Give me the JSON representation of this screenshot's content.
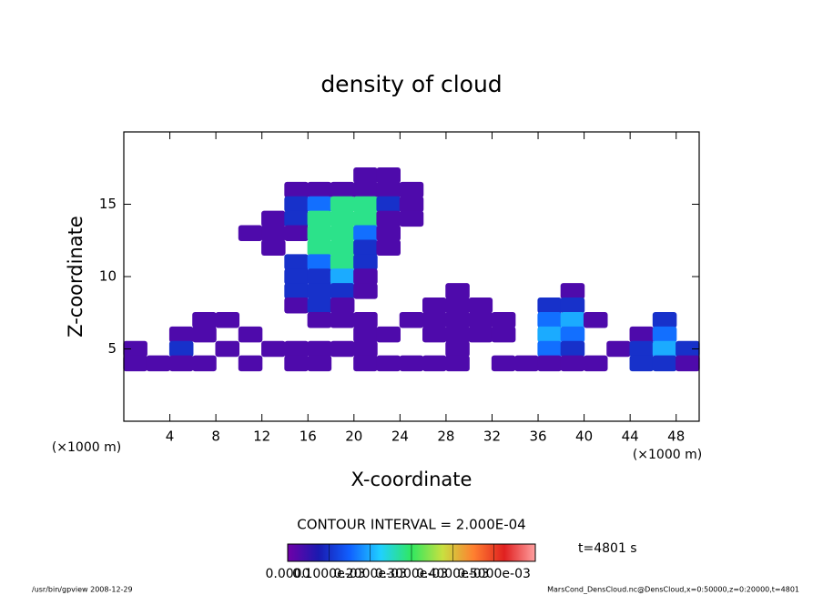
{
  "chart_data": {
    "type": "cellmap",
    "title": "density of cloud",
    "x_label": "X-coordinate",
    "y_label": "Z-coordinate",
    "x_unit": "(×1000 m)",
    "contour_interval": "CONTOUR INTERVAL = 2.000E-04",
    "time_label": "t=4801 s",
    "footer_left": "/usr/bin/gpview  2008-12-29",
    "footer_right": "MarsCond_DensCloud.nc@DensCloud,x=0:50000,z=0:20000,t=4801",
    "xlim": [
      0,
      50
    ],
    "xticks": [
      4,
      8,
      12,
      16,
      20,
      24,
      28,
      32,
      36,
      40,
      44,
      48
    ],
    "ylim": [
      0,
      20
    ],
    "yticks": [
      5,
      10,
      15
    ],
    "clim": [
      0,
      0.0006
    ],
    "cticks": [
      {
        "value": 0,
        "label": "0.0000"
      },
      {
        "value": 0.0001,
        "label": "0.1000e-03"
      },
      {
        "value": 0.0002,
        "label": "0.2000e-03"
      },
      {
        "value": 0.0003,
        "label": "0.3000e-03"
      },
      {
        "value": 0.0004,
        "label": "0.4000e-03"
      },
      {
        "value": 0.0005,
        "label": "0.5000e-03"
      }
    ],
    "colormap": [
      "#7000a8",
      "#1a1ab0",
      "#1060ff",
      "#20d0ff",
      "#30e860",
      "#c8e040",
      "#ff8030",
      "#e02020",
      "#ffa0a0"
    ],
    "x": [
      21,
      23,
      15,
      17,
      19,
      21,
      23,
      25,
      15,
      17,
      19,
      21,
      23,
      25,
      13,
      15,
      17,
      19,
      21,
      23,
      25,
      11,
      13,
      15,
      17,
      19,
      21,
      23,
      13,
      17,
      19,
      21,
      23,
      15,
      17,
      19,
      21,
      15,
      17,
      19,
      21,
      15,
      17,
      19,
      21,
      29,
      39,
      15,
      17,
      19,
      27,
      29,
      31,
      37,
      39,
      7,
      9,
      17,
      19,
      21,
      25,
      27,
      29,
      31,
      33,
      37,
      39,
      41,
      47,
      5,
      7,
      11,
      21,
      23,
      27,
      29,
      31,
      33,
      37,
      39,
      45,
      47,
      1,
      5,
      9,
      13,
      15,
      17,
      19,
      21,
      29,
      37,
      39,
      43,
      45,
      47,
      49,
      1,
      3,
      5,
      7,
      11,
      15,
      17,
      21,
      23,
      25,
      27,
      29,
      33,
      35,
      37,
      39,
      41,
      45,
      47,
      49
    ],
    "z": [
      17,
      17,
      16,
      16,
      16,
      16,
      16,
      16,
      15,
      15,
      15,
      15,
      15,
      15,
      14,
      14,
      14,
      14,
      14,
      14,
      14,
      13,
      13,
      13,
      13,
      13,
      13,
      13,
      12,
      12,
      12,
      12,
      12,
      11,
      11,
      11,
      11,
      10,
      10,
      10,
      10,
      9,
      9,
      9,
      9,
      9,
      9,
      8,
      8,
      8,
      8,
      8,
      8,
      8,
      8,
      7,
      7,
      7,
      7,
      7,
      7,
      7,
      7,
      7,
      7,
      7,
      7,
      7,
      7,
      6,
      6,
      6,
      6,
      6,
      6,
      6,
      6,
      6,
      6,
      6,
      6,
      6,
      5,
      5,
      5,
      5,
      5,
      5,
      5,
      5,
      5,
      5,
      5,
      5,
      5,
      5,
      5,
      4,
      4,
      4,
      4,
      4,
      4,
      4,
      4,
      4,
      4,
      4,
      4,
      4,
      4,
      4,
      4,
      4,
      4,
      4,
      4
    ],
    "values": [
      3e-05,
      3e-05,
      3e-05,
      3e-05,
      3e-05,
      3e-05,
      3e-05,
      3e-05,
      0.0001,
      0.00016,
      0.00028,
      0.00028,
      0.0001,
      3e-05,
      3e-05,
      0.0001,
      0.00028,
      0.00028,
      0.00028,
      3e-05,
      3e-05,
      3e-05,
      3e-05,
      3e-05,
      0.00028,
      0.00028,
      0.00016,
      3e-05,
      3e-05,
      0.00028,
      0.00028,
      0.0001,
      3e-05,
      0.0001,
      0.00016,
      0.00028,
      0.0001,
      0.0001,
      0.0001,
      0.0002,
      3e-05,
      0.0001,
      0.0001,
      0.0001,
      3e-05,
      3e-05,
      3e-05,
      3e-05,
      0.0001,
      3e-05,
      3e-05,
      3e-05,
      3e-05,
      0.0001,
      0.0001,
      3e-05,
      3e-05,
      3e-05,
      3e-05,
      3e-05,
      3e-05,
      3e-05,
      3e-05,
      3e-05,
      3e-05,
      0.00016,
      0.0002,
      3e-05,
      0.0001,
      3e-05,
      3e-05,
      3e-05,
      3e-05,
      3e-05,
      3e-05,
      3e-05,
      3e-05,
      3e-05,
      0.0002,
      0.00016,
      3e-05,
      0.00016,
      3e-05,
      0.0001,
      3e-05,
      3e-05,
      3e-05,
      3e-05,
      3e-05,
      3e-05,
      3e-05,
      0.00016,
      0.0001,
      3e-05,
      0.0001,
      0.0002,
      0.0001,
      3e-05,
      3e-05,
      3e-05,
      3e-05,
      3e-05,
      3e-05,
      3e-05,
      3e-05,
      3e-05,
      3e-05,
      3e-05,
      3e-05,
      3e-05,
      3e-05,
      3e-05,
      3e-05,
      3e-05,
      0.0001,
      0.0001,
      3e-05
    ]
  }
}
